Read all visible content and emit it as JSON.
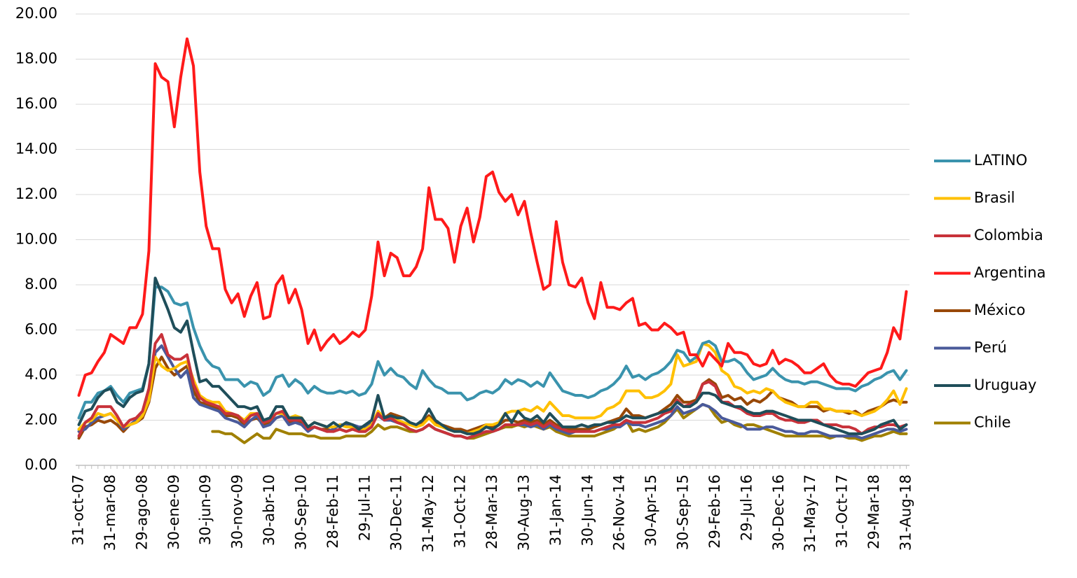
{
  "chart_data": {
    "type": "line",
    "categories": [
      "31-oct-07",
      null,
      null,
      null,
      null,
      "31-mar-08",
      null,
      null,
      null,
      null,
      "29-ago-08",
      null,
      null,
      null,
      null,
      "30-ene-09",
      null,
      null,
      null,
      null,
      "30-jun-09",
      null,
      null,
      null,
      null,
      "30-nov-09",
      null,
      null,
      null,
      null,
      "30-abr-10",
      null,
      null,
      null,
      null,
      "30-Sep-10",
      null,
      null,
      null,
      null,
      "28-Feb-11",
      null,
      null,
      null,
      null,
      "29-Jul-11",
      null,
      null,
      null,
      null,
      "30-Dec-11",
      null,
      null,
      null,
      null,
      "31-May-12",
      null,
      null,
      null,
      null,
      "31-Oct-12",
      null,
      null,
      null,
      null,
      "28-Mar-13",
      null,
      null,
      null,
      null,
      "30-Aug-13",
      null,
      null,
      null,
      null,
      "31-Jan-14",
      null,
      null,
      null,
      null,
      "30-Jun-14",
      null,
      null,
      null,
      null,
      "26-Nov-14",
      null,
      null,
      null,
      null,
      "30-Apr-15",
      null,
      null,
      null,
      null,
      "30-Sep-15",
      null,
      null,
      null,
      null,
      "29-Feb-16",
      null,
      null,
      null,
      null,
      "29-Jul-16",
      null,
      null,
      null,
      null,
      "30-Dec-16",
      null,
      null,
      null,
      null,
      "31-May-17",
      null,
      null,
      null,
      null,
      "31-Oct-17",
      null,
      null,
      null,
      null,
      "29-Mar-18",
      null,
      null,
      null,
      null,
      "31-Aug-18"
    ],
    "ylim": [
      0,
      20
    ],
    "yticks": [
      {
        "value": 0,
        "label": "0.00"
      },
      {
        "value": 2,
        "label": "2.00"
      },
      {
        "value": 4,
        "label": "4.00"
      },
      {
        "value": 6,
        "label": "6.00"
      },
      {
        "value": 8,
        "label": "8.00"
      },
      {
        "value": 10,
        "label": "10.00"
      },
      {
        "value": 12,
        "label": "12.00"
      },
      {
        "value": 14,
        "label": "14.00"
      },
      {
        "value": 16,
        "label": "16.00"
      },
      {
        "value": 18,
        "label": "18.00"
      },
      {
        "value": 20,
        "label": "20.00"
      }
    ],
    "grid": true,
    "legend": "right",
    "series": [
      {
        "name": "LATINO",
        "color": "#3a93ad",
        "values": [
          2.1,
          2.8,
          2.8,
          3.2,
          3.3,
          3.5,
          3.1,
          2.8,
          3.2,
          3.3,
          3.4,
          4.5,
          7.9,
          7.9,
          7.7,
          7.2,
          7.1,
          7.2,
          6.1,
          5.3,
          4.7,
          4.4,
          4.3,
          3.8,
          3.8,
          3.8,
          3.5,
          3.7,
          3.6,
          3.1,
          3.3,
          3.9,
          4.0,
          3.5,
          3.8,
          3.6,
          3.2,
          3.5,
          3.3,
          3.2,
          3.2,
          3.3,
          3.2,
          3.3,
          3.1,
          3.2,
          3.6,
          4.6,
          4.0,
          4.3,
          4.0,
          3.9,
          3.6,
          3.4,
          4.2,
          3.8,
          3.5,
          3.4,
          3.2,
          3.2,
          3.2,
          2.9,
          3.0,
          3.2,
          3.3,
          3.2,
          3.4,
          3.8,
          3.6,
          3.8,
          3.7,
          3.5,
          3.7,
          3.5,
          4.1,
          3.7,
          3.3,
          3.2,
          3.1,
          3.1,
          3.0,
          3.1,
          3.3,
          3.4,
          3.6,
          3.9,
          4.4,
          3.9,
          4.0,
          3.8,
          4.0,
          4.1,
          4.3,
          4.6,
          5.1,
          5.0,
          4.6,
          4.8,
          5.4,
          5.5,
          5.3,
          4.6,
          4.6,
          4.7,
          4.5,
          4.1,
          3.8,
          3.9,
          4.0,
          4.3,
          4.0,
          3.8,
          3.7,
          3.7,
          3.6,
          3.7,
          3.7,
          3.6,
          3.5,
          3.4,
          3.4,
          3.4,
          3.3,
          3.5,
          3.6,
          3.8,
          3.9,
          4.1,
          4.2,
          3.8,
          4.2
        ]
      },
      {
        "name": "Brasil",
        "color": "#ffc000",
        "values": [
          1.6,
          1.9,
          2.0,
          2.3,
          2.2,
          2.3,
          2.0,
          1.7,
          1.8,
          1.9,
          2.2,
          2.9,
          4.8,
          4.4,
          4.2,
          4.3,
          4.5,
          4.6,
          3.8,
          3.1,
          2.9,
          2.8,
          2.8,
          2.4,
          2.3,
          2.2,
          2.0,
          2.3,
          2.3,
          1.9,
          2.0,
          2.3,
          2.3,
          2.1,
          2.2,
          2.1,
          1.7,
          1.9,
          1.8,
          1.7,
          1.7,
          1.8,
          1.7,
          1.7,
          1.6,
          1.6,
          1.8,
          2.4,
          2.1,
          2.2,
          2.0,
          1.9,
          1.8,
          1.7,
          1.8,
          2.1,
          1.8,
          1.7,
          1.6,
          1.5,
          1.5,
          1.4,
          1.5,
          1.6,
          1.8,
          1.8,
          1.9,
          2.3,
          2.4,
          2.4,
          2.5,
          2.4,
          2.6,
          2.4,
          2.8,
          2.5,
          2.2,
          2.2,
          2.1,
          2.1,
          2.1,
          2.1,
          2.2,
          2.5,
          2.6,
          2.8,
          3.3,
          3.3,
          3.3,
          3.0,
          3.0,
          3.1,
          3.3,
          3.6,
          4.9,
          4.4,
          4.5,
          4.6,
          5.4,
          5.3,
          5.0,
          4.2,
          4.0,
          3.5,
          3.4,
          3.2,
          3.3,
          3.2,
          3.4,
          3.3,
          3.0,
          2.8,
          2.7,
          2.6,
          2.6,
          2.8,
          2.8,
          2.5,
          2.5,
          2.4,
          2.4,
          2.4,
          2.3,
          2.2,
          2.3,
          2.4,
          2.6,
          2.9,
          3.3,
          2.7,
          3.4
        ]
      },
      {
        "name": "Colombia",
        "color": "#c8323a",
        "values": [
          1.3,
          1.9,
          2.1,
          2.6,
          2.6,
          2.6,
          2.2,
          1.7,
          2.0,
          2.1,
          2.4,
          3.4,
          5.4,
          5.8,
          4.9,
          4.7,
          4.7,
          4.9,
          3.6,
          3.0,
          2.8,
          2.7,
          2.6,
          2.3,
          2.3,
          2.2,
          1.9,
          2.2,
          2.3,
          1.9,
          2.0,
          2.3,
          2.4,
          2.0,
          2.0,
          2.0,
          1.6,
          1.7,
          1.6,
          1.5,
          1.5,
          1.6,
          1.5,
          1.6,
          1.5,
          1.5,
          1.7,
          2.3,
          2.0,
          2.1,
          1.9,
          1.8,
          1.6,
          1.5,
          1.6,
          1.8,
          1.6,
          1.5,
          1.4,
          1.3,
          1.3,
          1.2,
          1.3,
          1.4,
          1.5,
          1.5,
          1.6,
          1.8,
          1.8,
          1.8,
          1.9,
          1.8,
          1.9,
          1.7,
          1.9,
          1.7,
          1.6,
          1.5,
          1.5,
          1.5,
          1.5,
          1.5,
          1.6,
          1.7,
          1.8,
          1.8,
          2.0,
          1.9,
          1.9,
          1.9,
          2.0,
          2.1,
          2.3,
          2.4,
          2.9,
          2.6,
          2.7,
          2.8,
          3.6,
          3.7,
          3.5,
          2.8,
          2.8,
          2.6,
          2.5,
          2.3,
          2.2,
          2.2,
          2.3,
          2.3,
          2.1,
          2.0,
          2.0,
          1.9,
          1.9,
          2.0,
          2.0,
          1.8,
          1.8,
          1.8,
          1.7,
          1.7,
          1.6,
          1.4,
          1.6,
          1.7,
          1.7,
          1.8,
          1.8,
          1.7,
          1.8
        ]
      },
      {
        "name": "Argentina",
        "color": "#ff1a1a",
        "values": [
          3.1,
          4.0,
          4.1,
          4.6,
          5.0,
          5.8,
          5.6,
          5.4,
          6.1,
          6.1,
          6.7,
          9.5,
          17.8,
          17.2,
          17.0,
          15.0,
          17.2,
          18.9,
          17.7,
          13.0,
          10.6,
          9.6,
          9.6,
          7.8,
          7.2,
          7.6,
          6.6,
          7.5,
          8.1,
          6.5,
          6.6,
          8.0,
          8.4,
          7.2,
          7.8,
          6.9,
          5.4,
          6.0,
          5.1,
          5.5,
          5.8,
          5.4,
          5.6,
          5.9,
          5.7,
          6.0,
          7.5,
          9.9,
          8.4,
          9.4,
          9.2,
          8.4,
          8.4,
          8.8,
          9.6,
          12.3,
          10.9,
          10.9,
          10.5,
          9.0,
          10.6,
          11.4,
          9.9,
          11.0,
          12.8,
          13.0,
          12.1,
          11.7,
          12.0,
          11.1,
          11.7,
          10.3,
          9.0,
          7.8,
          8.0,
          10.8,
          9.0,
          8.0,
          7.9,
          8.3,
          7.2,
          6.5,
          8.1,
          7.0,
          7.0,
          6.9,
          7.2,
          7.4,
          6.2,
          6.3,
          6.0,
          6.0,
          6.3,
          6.1,
          5.8,
          5.9,
          4.9,
          4.9,
          4.4,
          5.0,
          4.7,
          4.4,
          5.4,
          5.0,
          5.0,
          4.9,
          4.5,
          4.4,
          4.5,
          5.1,
          4.5,
          4.7,
          4.6,
          4.4,
          4.1,
          4.1,
          4.3,
          4.5,
          4.0,
          3.7,
          3.6,
          3.6,
          3.5,
          3.8,
          4.1,
          4.2,
          4.3,
          5.0,
          6.1,
          5.6,
          7.7
        ]
      },
      {
        "name": "México",
        "color": "#984807",
        "values": [
          1.2,
          1.7,
          1.8,
          2.0,
          1.9,
          2.0,
          1.8,
          1.5,
          1.8,
          1.9,
          2.1,
          2.8,
          4.3,
          4.8,
          4.3,
          4.0,
          4.2,
          4.4,
          3.3,
          2.8,
          2.7,
          2.6,
          2.5,
          2.2,
          2.2,
          2.1,
          1.8,
          2.0,
          2.1,
          1.8,
          1.9,
          2.1,
          2.2,
          1.9,
          1.9,
          1.9,
          1.6,
          1.7,
          1.6,
          1.6,
          1.5,
          1.6,
          1.5,
          1.6,
          1.5,
          1.5,
          1.8,
          2.3,
          2.1,
          2.3,
          2.2,
          2.1,
          1.9,
          1.7,
          1.9,
          2.2,
          1.9,
          1.8,
          1.7,
          1.6,
          1.6,
          1.5,
          1.6,
          1.7,
          1.8,
          1.7,
          1.8,
          2.0,
          2.0,
          1.9,
          2.0,
          1.9,
          2.0,
          1.8,
          2.0,
          1.8,
          1.7,
          1.6,
          1.6,
          1.6,
          1.6,
          1.7,
          1.8,
          1.9,
          2.0,
          2.1,
          2.5,
          2.2,
          2.2,
          2.1,
          2.2,
          2.3,
          2.5,
          2.7,
          3.1,
          2.8,
          2.8,
          2.9,
          3.6,
          3.8,
          3.6,
          3.0,
          3.1,
          2.9,
          3.0,
          2.7,
          2.9,
          2.8,
          3.0,
          3.3,
          3.0,
          2.9,
          2.8,
          2.6,
          2.6,
          2.6,
          2.6,
          2.4,
          2.5,
          2.4,
          2.4,
          2.3,
          2.4,
          2.2,
          2.4,
          2.5,
          2.6,
          2.8,
          2.9,
          2.8,
          2.8
        ]
      },
      {
        "name": "Perú",
        "color": "#4a5a9a",
        "values": [
          1.5,
          1.6,
          1.9,
          2.1,
          2.2,
          2.3,
          2.0,
          1.6,
          1.8,
          2.0,
          2.2,
          3.0,
          5.0,
          5.3,
          4.8,
          4.3,
          3.9,
          4.2,
          3.0,
          2.7,
          2.6,
          2.5,
          2.4,
          2.1,
          2.0,
          1.9,
          1.7,
          2.0,
          2.2,
          1.7,
          1.8,
          2.1,
          2.2,
          1.8,
          1.9,
          1.8,
          1.5,
          1.7,
          1.6,
          1.5,
          1.6,
          1.8,
          1.8,
          1.8,
          1.7,
          1.7,
          1.9,
          2.2,
          2.0,
          2.0,
          1.9,
          1.8,
          1.6,
          1.5,
          1.6,
          1.8,
          1.6,
          1.5,
          1.4,
          1.3,
          1.3,
          1.2,
          1.3,
          1.4,
          1.5,
          1.5,
          1.6,
          1.8,
          1.8,
          1.8,
          1.8,
          1.7,
          1.8,
          1.6,
          1.8,
          1.6,
          1.5,
          1.4,
          1.5,
          1.5,
          1.5,
          1.5,
          1.6,
          1.6,
          1.7,
          1.7,
          1.9,
          1.8,
          1.8,
          1.7,
          1.8,
          1.9,
          2.0,
          2.2,
          2.6,
          2.3,
          2.4,
          2.5,
          2.7,
          2.6,
          2.4,
          2.1,
          2.0,
          1.9,
          1.8,
          1.6,
          1.6,
          1.6,
          1.7,
          1.7,
          1.6,
          1.5,
          1.5,
          1.4,
          1.4,
          1.5,
          1.5,
          1.4,
          1.3,
          1.3,
          1.3,
          1.3,
          1.3,
          1.2,
          1.3,
          1.4,
          1.5,
          1.6,
          1.6,
          1.5,
          1.6
        ]
      },
      {
        "name": "Uruguay",
        "color": "#1f4e5a",
        "values": [
          1.8,
          2.4,
          2.5,
          3.0,
          3.3,
          3.4,
          2.8,
          2.6,
          3.0,
          3.2,
          3.3,
          4.5,
          8.3,
          7.6,
          6.9,
          6.1,
          5.9,
          6.4,
          5.0,
          3.7,
          3.8,
          3.5,
          3.5,
          3.2,
          2.9,
          2.6,
          2.6,
          2.5,
          2.6,
          2.0,
          2.1,
          2.6,
          2.6,
          2.1,
          2.1,
          2.1,
          1.7,
          1.9,
          1.8,
          1.7,
          1.9,
          1.7,
          1.9,
          1.8,
          1.6,
          1.8,
          2.0,
          3.1,
          2.1,
          2.2,
          2.1,
          2.1,
          1.9,
          1.8,
          2.0,
          2.5,
          2.0,
          1.8,
          1.6,
          1.5,
          1.5,
          1.4,
          1.4,
          1.5,
          1.7,
          1.6,
          1.8,
          2.3,
          1.9,
          2.4,
          2.1,
          2.0,
          2.2,
          1.9,
          2.3,
          2.0,
          1.7,
          1.7,
          1.7,
          1.8,
          1.7,
          1.8,
          1.8,
          1.9,
          1.9,
          2.0,
          2.2,
          2.1,
          2.1,
          2.1,
          2.2,
          2.3,
          2.4,
          2.5,
          2.8,
          2.6,
          2.6,
          2.8,
          3.2,
          3.2,
          3.1,
          2.8,
          2.7,
          2.6,
          2.6,
          2.4,
          2.3,
          2.3,
          2.4,
          2.4,
          2.3,
          2.2,
          2.1,
          2.0,
          2.0,
          2.0,
          1.9,
          1.8,
          1.7,
          1.6,
          1.5,
          1.4,
          1.4,
          1.4,
          1.5,
          1.6,
          1.8,
          1.9,
          2.0,
          1.6,
          1.8
        ]
      },
      {
        "name": "Chile",
        "color": "#a08000",
        "values": [
          null,
          null,
          null,
          null,
          null,
          null,
          null,
          null,
          null,
          null,
          null,
          null,
          null,
          null,
          null,
          null,
          null,
          null,
          null,
          null,
          null,
          1.5,
          1.5,
          1.4,
          1.4,
          1.2,
          1.0,
          1.2,
          1.4,
          1.2,
          1.2,
          1.6,
          1.5,
          1.4,
          1.4,
          1.4,
          1.3,
          1.3,
          1.2,
          1.2,
          1.2,
          1.2,
          1.3,
          1.3,
          1.3,
          1.3,
          1.5,
          1.8,
          1.6,
          1.7,
          1.7,
          1.6,
          1.5,
          1.5,
          1.6,
          1.8,
          1.6,
          1.5,
          1.4,
          1.3,
          1.3,
          1.2,
          1.2,
          1.3,
          1.4,
          1.5,
          1.6,
          1.7,
          1.7,
          1.8,
          1.7,
          1.8,
          1.7,
          1.6,
          1.7,
          1.5,
          1.4,
          1.3,
          1.3,
          1.3,
          1.3,
          1.3,
          1.4,
          1.5,
          1.6,
          1.8,
          2.0,
          1.5,
          1.6,
          1.5,
          1.6,
          1.7,
          1.9,
          2.2,
          2.5,
          2.1,
          2.3,
          2.5,
          2.7,
          2.6,
          2.2,
          1.9,
          2.0,
          1.8,
          1.7,
          1.8,
          1.8,
          1.7,
          1.6,
          1.5,
          1.4,
          1.3,
          1.3,
          1.3,
          1.3,
          1.3,
          1.3,
          1.3,
          1.2,
          1.3,
          1.3,
          1.2,
          1.2,
          1.1,
          1.2,
          1.3,
          1.3,
          1.4,
          1.5,
          1.4,
          1.4
        ]
      }
    ]
  }
}
